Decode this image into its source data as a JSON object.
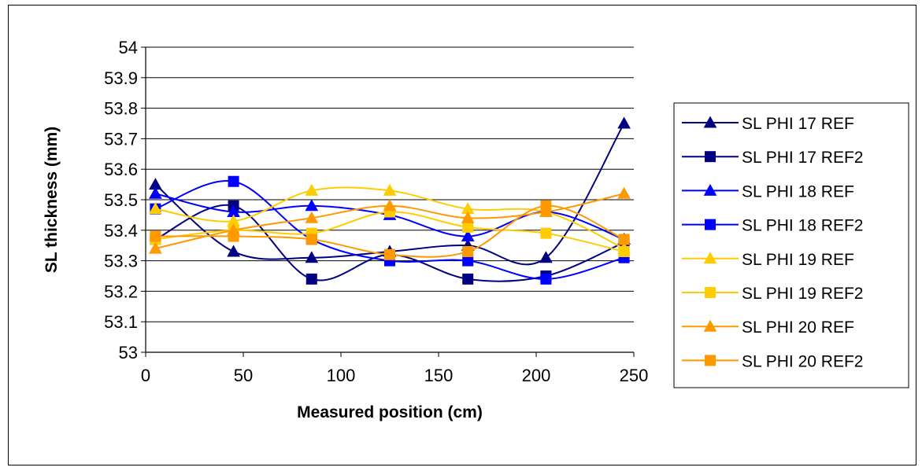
{
  "chart_data": {
    "type": "line",
    "title": "",
    "xlabel": "Measured position (cm)",
    "ylabel": "SL thickness (mm)",
    "xlim": [
      0,
      250
    ],
    "ylim": [
      53,
      54
    ],
    "xticks": [
      0,
      50,
      100,
      150,
      200,
      250
    ],
    "yticks": [
      53,
      53.1,
      53.2,
      53.3,
      53.4,
      53.5,
      53.6,
      53.7,
      53.8,
      53.9,
      54
    ],
    "x": [
      5,
      45,
      85,
      125,
      165,
      205,
      245
    ],
    "grid": "horizontal",
    "legend_position": "right",
    "series": [
      {
        "name": "SL PHI 17 REF",
        "marker": "triangle",
        "color": "#000080",
        "values": [
          53.55,
          53.33,
          53.31,
          53.33,
          53.35,
          53.31,
          53.75
        ]
      },
      {
        "name": "SL PHI 17 REF2",
        "marker": "square",
        "color": "#000080",
        "values": [
          53.37,
          53.48,
          53.24,
          53.32,
          53.24,
          53.25,
          53.36
        ]
      },
      {
        "name": "SL PHI 18 REF",
        "marker": "triangle",
        "color": "#0000FF",
        "values": [
          53.52,
          53.46,
          53.48,
          53.45,
          53.38,
          53.46,
          53.37
        ]
      },
      {
        "name": "SL PHI 18 REF2",
        "marker": "square",
        "color": "#0000FF",
        "values": [
          53.47,
          53.56,
          53.37,
          53.3,
          53.3,
          53.24,
          53.31
        ]
      },
      {
        "name": "SL PHI 19 REF",
        "marker": "triangle",
        "color": "#FFCC00",
        "values": [
          53.47,
          53.43,
          53.53,
          53.53,
          53.47,
          53.46,
          53.34
        ]
      },
      {
        "name": "SL PHI 19 REF2",
        "marker": "square",
        "color": "#FFCC00",
        "values": [
          53.37,
          53.4,
          53.39,
          53.46,
          53.41,
          53.39,
          53.33
        ]
      },
      {
        "name": "SL PHI 20 REF",
        "marker": "triangle",
        "color": "#FF9900",
        "values": [
          53.34,
          53.4,
          53.44,
          53.48,
          53.44,
          53.46,
          53.52
        ]
      },
      {
        "name": "SL PHI 20 REF2",
        "marker": "square",
        "color": "#FF9900",
        "values": [
          53.38,
          53.38,
          53.37,
          53.32,
          53.33,
          53.48,
          53.37
        ]
      }
    ]
  }
}
